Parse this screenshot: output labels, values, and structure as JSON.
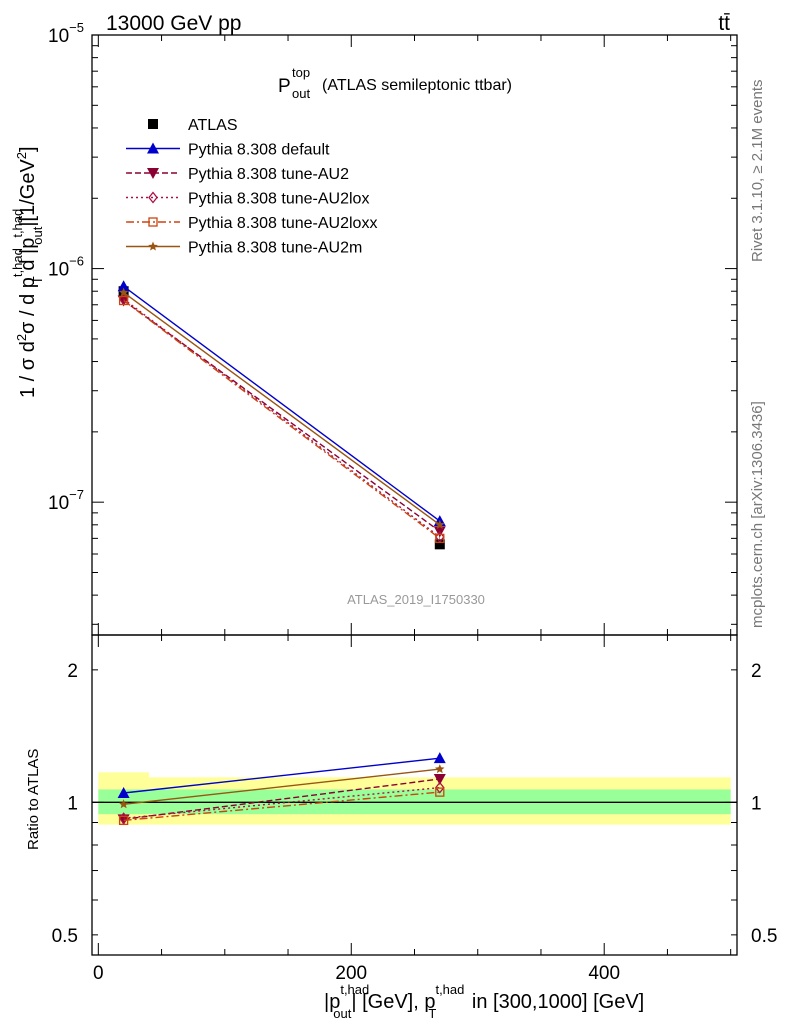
{
  "header": {
    "left": "13000 GeV pp",
    "right": "tt̄"
  },
  "side_labels": {
    "rivet": "Rivet 3.1.10, ≥ 2.1M events",
    "mcplots": "mcplots.cern.ch [arXiv:1306.3436]"
  },
  "chart_data": [
    {
      "type": "line",
      "title_main": "P",
      "title_sup": "top",
      "title_sub": "out",
      "title_rest": "(ATLAS semileptonic ttbar)",
      "analysis_id": "ATLAS_2019_I1750330",
      "ylabel": "1 / σ d²σ / d p_T^{t,had} d |p_out^{t,had}| [1/GeV²]",
      "yscale": "log",
      "ylim": [
        2.7e-08,
        1e-05
      ],
      "xlim": [
        -5,
        505
      ],
      "x_ticks": [
        0,
        200,
        400
      ],
      "y_ticks": [
        {
          "value": 1e-05,
          "label": "10",
          "exp": "−5"
        },
        {
          "value": 1e-06,
          "label": "10",
          "exp": "−6"
        },
        {
          "value": 1e-07,
          "label": "10",
          "exp": "−7"
        }
      ],
      "legend_position": "top-left",
      "series": [
        {
          "name": "ATLAS",
          "color": "#000000",
          "marker": "square",
          "x": [
            20,
            270
          ],
          "y": [
            8e-07,
            6.6e-08
          ],
          "style": "points"
        },
        {
          "name": "Pythia 8.308 default",
          "color": "#0000cc",
          "marker": "triangle-up",
          "x": [
            20,
            270
          ],
          "y": [
            8.4e-07,
            8.3e-08
          ],
          "style": "solid"
        },
        {
          "name": "Pythia 8.308 tune-AU2",
          "color": "#8b0033",
          "marker": "triangle-down",
          "x": [
            20,
            270
          ],
          "y": [
            7.3e-07,
            7.5e-08
          ],
          "style": "dashed"
        },
        {
          "name": "Pythia 8.308 tune-AU2lox",
          "color": "#aa1144",
          "marker": "diamond-open",
          "x": [
            20,
            270
          ],
          "y": [
            7.4e-07,
            7.1e-08
          ],
          "style": "dotted"
        },
        {
          "name": "Pythia 8.308 tune-AU2loxx",
          "color": "#cc4411",
          "marker": "square-open",
          "x": [
            20,
            270
          ],
          "y": [
            7.3e-07,
            7e-08
          ],
          "style": "dashdot"
        },
        {
          "name": "Pythia 8.308 tune-AU2m",
          "color": "#995511",
          "marker": "star",
          "x": [
            20,
            270
          ],
          "y": [
            7.9e-07,
            8e-08
          ],
          "style": "solid"
        }
      ]
    },
    {
      "type": "line",
      "ylabel": "Ratio to ATLAS",
      "xlabel_parts": [
        "|p",
        "t,had",
        "out",
        "| [GeV], p",
        "t,had",
        "T",
        " in [300,1000] [GeV]"
      ],
      "yscale": "log",
      "ylim": [
        0.45,
        2.4
      ],
      "xlim": [
        -5,
        505
      ],
      "x_ticks": [
        0,
        200,
        400
      ],
      "y_ticks": [
        {
          "value": 0.5,
          "label": "0.5"
        },
        {
          "value": 1,
          "label": "1"
        },
        {
          "value": 2,
          "label": "2"
        }
      ],
      "bands": [
        {
          "x": [
            0,
            40
          ],
          "y_low": [
            0.89,
            0.89
          ],
          "y_high": [
            1.17,
            1.17
          ],
          "color": "#ffff99"
        },
        {
          "x": [
            40,
            500
          ],
          "y_low": [
            0.89,
            0.89
          ],
          "y_high": [
            1.14,
            1.14
          ],
          "color": "#ffff99"
        },
        {
          "x": [
            0,
            500
          ],
          "y_low": [
            0.94,
            0.94
          ],
          "y_high": [
            1.07,
            1.07
          ],
          "color": "#99ff99"
        }
      ],
      "series": [
        {
          "name": "Pythia 8.308 default",
          "color": "#0000cc",
          "marker": "triangle-up",
          "x": [
            20,
            270
          ],
          "y": [
            1.05,
            1.26
          ],
          "style": "solid"
        },
        {
          "name": "Pythia 8.308 tune-AU2",
          "color": "#8b0033",
          "marker": "triangle-down",
          "x": [
            20,
            270
          ],
          "y": [
            0.915,
            1.13
          ],
          "style": "dashed"
        },
        {
          "name": "Pythia 8.308 tune-AU2lox",
          "color": "#aa1144",
          "marker": "diamond-open",
          "x": [
            20,
            270
          ],
          "y": [
            0.92,
            1.08
          ],
          "style": "dotted"
        },
        {
          "name": "Pythia 8.308 tune-AU2loxx",
          "color": "#cc4411",
          "marker": "square-open",
          "x": [
            20,
            270
          ],
          "y": [
            0.91,
            1.055
          ],
          "style": "dashdot"
        },
        {
          "name": "Pythia 8.308 tune-AU2m",
          "color": "#995511",
          "marker": "star",
          "x": [
            20,
            270
          ],
          "y": [
            0.99,
            1.19
          ],
          "style": "solid"
        }
      ]
    }
  ]
}
